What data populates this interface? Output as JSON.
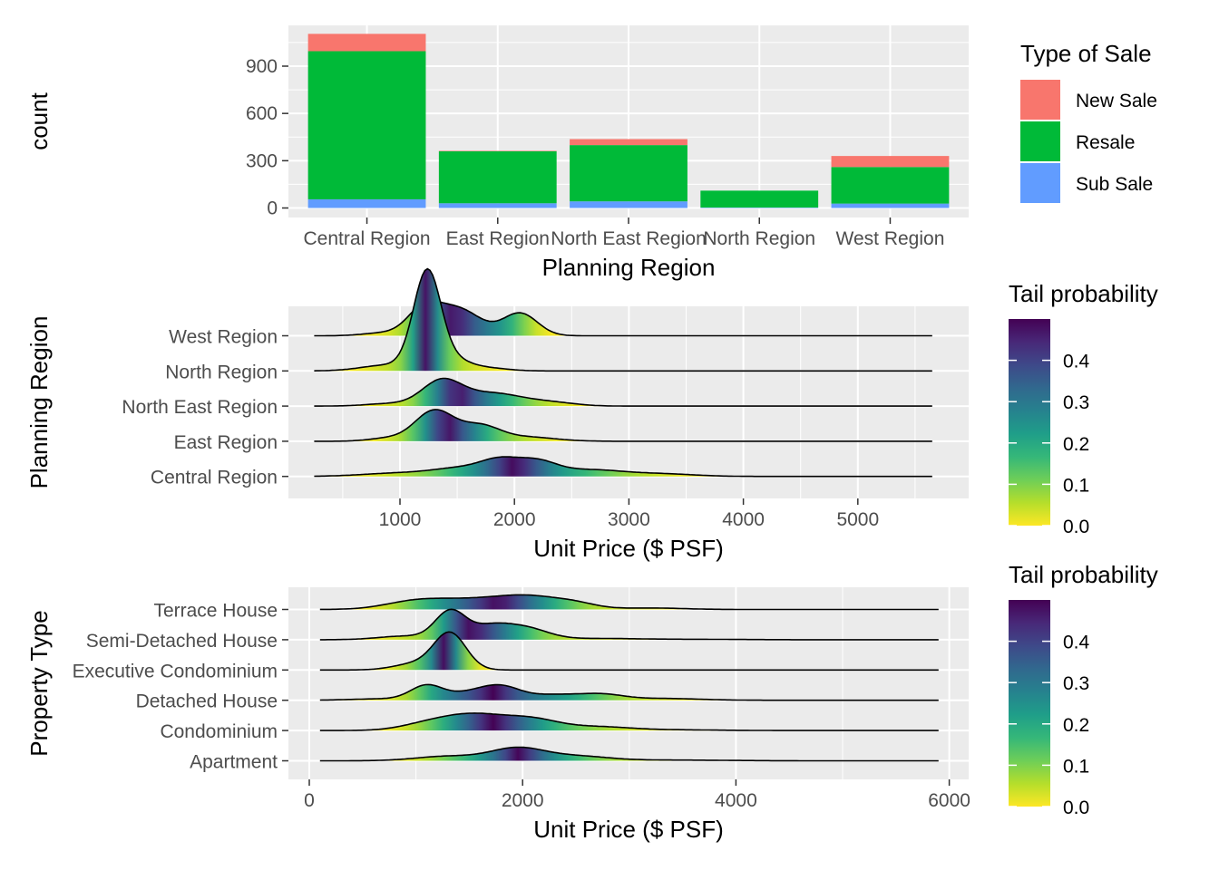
{
  "colors": {
    "panel_bg": "#EBEBEB",
    "grid": "#FFFFFF",
    "new_sale": "#F8766D",
    "resale": "#00BA38",
    "sub_sale": "#619CFF",
    "viridis": [
      "#FDE725",
      "#B5DE2B",
      "#6ECE58",
      "#35B779",
      "#1F9E89",
      "#26828E",
      "#31688E",
      "#3E4989",
      "#482878",
      "#440154"
    ]
  },
  "chart_data": [
    {
      "type": "bar",
      "stacked": true,
      "xlabel": "Planning Region",
      "ylabel": "count",
      "ylim": [
        0,
        1150
      ],
      "yticks": [
        0,
        300,
        600,
        900
      ],
      "categories": [
        "Central Region",
        "East Region",
        "North East Region",
        "North Region",
        "West Region"
      ],
      "series": [
        {
          "name": "Sub Sale",
          "values": [
            55,
            30,
            42,
            3,
            28
          ]
        },
        {
          "name": "Resale",
          "values": [
            940,
            330,
            357,
            107,
            232
          ]
        },
        {
          "name": "New Sale",
          "values": [
            110,
            3,
            38,
            0,
            70
          ]
        }
      ],
      "legend": {
        "title": "Type of Sale",
        "position": "right",
        "entries": [
          "New Sale",
          "Resale",
          "Sub Sale"
        ]
      },
      "grid": true
    },
    {
      "type": "area",
      "subtype": "ridgeline",
      "fill": "tail probability",
      "xlabel": "Unit Price ($ PSF)",
      "ylabel": "Planning Region",
      "xlim": [
        -50,
        5850
      ],
      "xticks": [
        1000,
        2000,
        3000,
        4000,
        5000
      ],
      "categories": [
        "Central Region",
        "East Region",
        "North East Region",
        "North Region",
        "West Region"
      ],
      "series": [
        {
          "name": "Central Region",
          "median": 2000,
          "min": 250,
          "max": 5650,
          "peaks": [
            [
              1000,
              0.14,
              320
            ],
            [
              1550,
              0.33,
              250
            ],
            [
              1880,
              0.58,
              170
            ],
            [
              2200,
              0.55,
              170
            ],
            [
              2650,
              0.28,
              300
            ],
            [
              3300,
              0.1,
              280
            ]
          ]
        },
        {
          "name": "East Region",
          "median": 1350,
          "min": 250,
          "max": 5650,
          "peaks": [
            [
              880,
              0.12,
              160
            ],
            [
              1300,
              1.3,
              170
            ],
            [
              1700,
              0.62,
              170
            ],
            [
              2100,
              0.18,
              250
            ]
          ]
        },
        {
          "name": "North East Region",
          "median": 1500,
          "min": 250,
          "max": 5650,
          "peaks": [
            [
              900,
              0.1,
              200
            ],
            [
              1360,
              1.0,
              170
            ],
            [
              1800,
              0.55,
              280
            ],
            [
              2350,
              0.12,
              200
            ]
          ]
        },
        {
          "name": "North Region",
          "median": 1250,
          "min": 250,
          "max": 5650,
          "peaks": [
            [
              900,
              0.25,
              230
            ],
            [
              1240,
              4.2,
              120
            ],
            [
              1500,
              0.35,
              130
            ],
            [
              1750,
              0.13,
              180
            ]
          ]
        },
        {
          "name": "West Region",
          "median": 1450,
          "min": 250,
          "max": 5650,
          "peaks": [
            [
              850,
              0.12,
              170
            ],
            [
              1200,
              1.0,
              140
            ],
            [
              1500,
              1.15,
              200
            ],
            [
              2050,
              0.95,
              150
            ]
          ]
        }
      ],
      "legend": {
        "title": "Tail probability",
        "position": "right",
        "ticks": [
          0.0,
          0.1,
          0.2,
          0.3,
          0.4
        ]
      },
      "grid": true
    },
    {
      "type": "area",
      "subtype": "ridgeline",
      "fill": "tail probability",
      "xlabel": "Unit Price ($ PSF)",
      "ylabel": "Property Type",
      "xlim": [
        -50,
        6150
      ],
      "xticks": [
        0,
        2000,
        4000,
        6000
      ],
      "categories": [
        "Apartment",
        "Condominium",
        "Detached House",
        "Executive Condominium",
        "Semi-Detached House",
        "Terrace House"
      ],
      "series": [
        {
          "name": "Apartment",
          "median": 1950,
          "min": 100,
          "max": 5900,
          "peaks": [
            [
              1300,
              0.25,
              300
            ],
            [
              1950,
              0.68,
              250
            ],
            [
              2500,
              0.25,
              300
            ],
            [
              3400,
              0.04,
              500
            ]
          ]
        },
        {
          "name": "Condominium",
          "median": 1700,
          "min": 100,
          "max": 5900,
          "peaks": [
            [
              1100,
              0.3,
              250
            ],
            [
              1550,
              0.85,
              300
            ],
            [
              2100,
              0.55,
              250
            ],
            [
              2700,
              0.2,
              300
            ],
            [
              3400,
              0.04,
              400
            ]
          ]
        },
        {
          "name": "Detached House",
          "median": 1700,
          "min": 100,
          "max": 5900,
          "peaks": [
            [
              700,
              0.08,
              300
            ],
            [
              1100,
              0.78,
              150
            ],
            [
              1500,
              0.38,
              200
            ],
            [
              1800,
              0.68,
              180
            ],
            [
              2300,
              0.3,
              250
            ],
            [
              2750,
              0.28,
              200
            ],
            [
              3300,
              0.1,
              350
            ]
          ]
        },
        {
          "name": "Executive Condominium",
          "median": 1300,
          "min": 100,
          "max": 5900,
          "peaks": [
            [
              1000,
              0.35,
              200
            ],
            [
              1320,
              2.0,
              150
            ]
          ]
        },
        {
          "name": "Semi-Detached House",
          "median": 1300,
          "min": 100,
          "max": 5900,
          "peaks": [
            [
              900,
              0.2,
              250
            ],
            [
              1320,
              1.5,
              140
            ],
            [
              1700,
              0.75,
              200
            ],
            [
              2050,
              0.55,
              200
            ],
            [
              2700,
              0.07,
              400
            ],
            [
              3700,
              0.02,
              400
            ]
          ]
        },
        {
          "name": "Terrace House",
          "median": 1950,
          "min": 100,
          "max": 5900,
          "peaks": [
            [
              1000,
              0.45,
              280
            ],
            [
              1500,
              0.42,
              300
            ],
            [
              2050,
              0.7,
              300
            ],
            [
              2500,
              0.25,
              200
            ],
            [
              3200,
              0.08,
              300
            ]
          ]
        }
      ],
      "legend": {
        "title": "Tail probability",
        "position": "right",
        "ticks": [
          0.0,
          0.1,
          0.2,
          0.3,
          0.4
        ]
      },
      "grid": true
    }
  ]
}
